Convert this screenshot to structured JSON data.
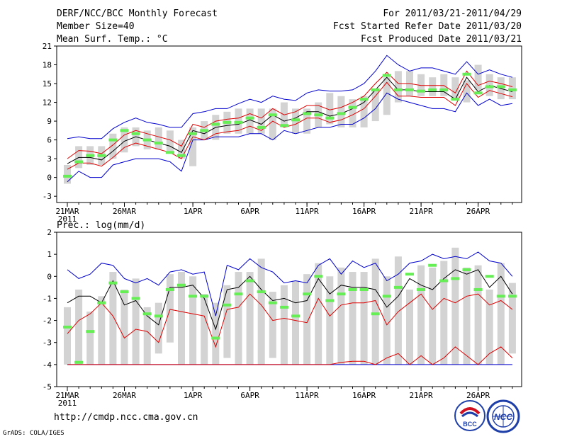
{
  "header": {
    "title": "DERF/NCC/BCC Monthly Forecast",
    "member_size": "Member Size=40",
    "variable": "Mean Surf. Temp.: °C",
    "period": "For 2011/03/21-2011/04/29",
    "started": "Fcst Started Refer Date 2011/03/20",
    "produced": "Fcst Produced Date 2011/03/21"
  },
  "footer": {
    "url": "http://cmdp.ncc.cma.gov.cn",
    "credit": "GrADS: COLA/IGES",
    "logo_left_text": "BCC",
    "logo_right_text": "NCC"
  },
  "colors": {
    "box": "#d3d3d3",
    "obs": "#66ee55",
    "mean": "#000000",
    "band": "#dd0000",
    "envelope": "#0000cc"
  },
  "chart_data": [
    {
      "type": "box",
      "title": "",
      "ylabel": "Mean Surf. Temp.: °C",
      "ylim": [
        -4,
        21
      ],
      "yticks": [
        -3,
        0,
        3,
        6,
        9,
        12,
        15,
        18,
        21
      ],
      "xticks": [
        {
          "day": 0,
          "label": "21MAR",
          "sub": "2011"
        },
        {
          "day": 5,
          "label": "26MAR"
        },
        {
          "day": 11,
          "label": "1APR"
        },
        {
          "day": 16,
          "label": "6APR"
        },
        {
          "day": 21,
          "label": "11APR"
        },
        {
          "day": 26,
          "label": "16APR"
        },
        {
          "day": 31,
          "label": "21APR"
        },
        {
          "day": 36,
          "label": "26APR"
        }
      ],
      "days": [
        0,
        1,
        2,
        3,
        4,
        5,
        6,
        7,
        8,
        9,
        10,
        11,
        12,
        13,
        14,
        15,
        16,
        17,
        18,
        19,
        20,
        21,
        22,
        23,
        24,
        25,
        26,
        27,
        28,
        29,
        30,
        31,
        32,
        33,
        34,
        35,
        36,
        37,
        38,
        39
      ],
      "box_low": [
        -1,
        1.5,
        2,
        2,
        3,
        4,
        5,
        4.5,
        4.5,
        4,
        3,
        1.8,
        6,
        6,
        7,
        7,
        7,
        7,
        6,
        8,
        7,
        7,
        8,
        8.5,
        8,
        8,
        8,
        9,
        10,
        12,
        13,
        13,
        13,
        13,
        12.5,
        12,
        14,
        13,
        12.5,
        12.5
      ],
      "box_high": [
        2,
        5,
        5,
        5,
        7,
        8,
        8,
        7.5,
        8,
        7.5,
        6,
        8,
        9,
        10,
        10.5,
        11,
        11,
        11,
        11,
        12,
        11,
        11,
        12,
        13.5,
        13,
        12.5,
        13,
        14,
        16,
        17,
        17,
        16.5,
        16,
        16.5,
        16,
        15.5,
        18,
        16.5,
        16,
        16
      ],
      "mean": [
        2.2,
        3.2,
        3.2,
        2.8,
        4.2,
        5.8,
        6.5,
        6,
        5.5,
        5,
        4,
        7.5,
        7,
        8,
        8.3,
        8.5,
        9.2,
        8.5,
        10,
        9,
        9.5,
        10.5,
        10.5,
        9.8,
        10.2,
        11,
        12,
        14,
        16,
        14,
        14,
        13.7,
        13.7,
        13.7,
        12.5,
        16,
        13.7,
        14.7,
        14.2,
        13.7
      ],
      "band_upper": [
        3,
        4.3,
        4.2,
        3.8,
        5.2,
        6.8,
        7.5,
        7,
        6.5,
        6,
        5,
        8.5,
        8,
        9,
        9.3,
        9.5,
        10.2,
        9.5,
        11,
        10,
        10.5,
        11.5,
        11.5,
        10.8,
        11.2,
        12,
        13,
        15,
        16.8,
        15,
        15,
        14.7,
        14.7,
        14.7,
        13.5,
        17,
        14.7,
        15.4,
        15,
        14.5
      ],
      "band_lower": [
        1.3,
        2.3,
        2.3,
        1.8,
        3.2,
        4.8,
        5.5,
        5,
        4.5,
        4,
        3,
        6.5,
        6,
        7,
        7.3,
        7.5,
        8.2,
        7.5,
        9,
        8,
        8.5,
        9.5,
        9.5,
        8.8,
        9.2,
        10,
        11,
        13,
        15.2,
        13,
        13,
        12.8,
        12.8,
        12.8,
        11.5,
        15,
        12.8,
        13.9,
        13.4,
        12.9
      ],
      "env_max": [
        6.2,
        6.5,
        6.2,
        6.2,
        7.8,
        8.8,
        9.5,
        8.8,
        8.5,
        8,
        8,
        10.2,
        10.5,
        11,
        11,
        11.8,
        12.5,
        12,
        13,
        12.5,
        12.3,
        13.5,
        14,
        13.8,
        13.8,
        14,
        15,
        17,
        19.5,
        18,
        17,
        17.5,
        17.5,
        17,
        16.5,
        18.5,
        16.5,
        17.2,
        16.5,
        16
      ],
      "env_min": [
        -0.7,
        1,
        0,
        0,
        2,
        2.5,
        3,
        3,
        3,
        2.5,
        1,
        6,
        6,
        6.5,
        6.5,
        6.5,
        7,
        7,
        6,
        7.5,
        7,
        7.5,
        8,
        8,
        8.5,
        8.5,
        9.5,
        11,
        13.5,
        12.5,
        12,
        11.5,
        11,
        11,
        10.5,
        13.5,
        11.5,
        12.5,
        11.5,
        11.8
      ],
      "obs": [
        0.2,
        2.5,
        3.5,
        3.5,
        6,
        7.5,
        7,
        6,
        5.5,
        4,
        3.5,
        7,
        7.5,
        8.5,
        8.8,
        8.8,
        9.5,
        8,
        10,
        8.3,
        9.2,
        10.2,
        10,
        9.5,
        10.2,
        11.2,
        12.5,
        14,
        16.3,
        14,
        14,
        13.8,
        14,
        14,
        12.5,
        16.5,
        13.5,
        14.5,
        14.5,
        14
      ]
    },
    {
      "type": "box",
      "title": "",
      "ylabel": "Prec.: log(mm/d)",
      "ylim": [
        -5,
        2
      ],
      "yticks": [
        -5,
        -4,
        -3,
        -2,
        -1,
        0,
        1,
        2
      ],
      "xticks": [
        {
          "day": 0,
          "label": "21MAR",
          "sub": "2011"
        },
        {
          "day": 5,
          "label": "26MAR"
        },
        {
          "day": 11,
          "label": "1APR"
        },
        {
          "day": 16,
          "label": "6APR"
        },
        {
          "day": 21,
          "label": "11APR"
        },
        {
          "day": 26,
          "label": "16APR"
        },
        {
          "day": 31,
          "label": "21APR"
        },
        {
          "day": 36,
          "label": "26APR"
        }
      ],
      "days": [
        0,
        1,
        2,
        3,
        4,
        5,
        6,
        7,
        8,
        9,
        10,
        11,
        12,
        13,
        14,
        15,
        16,
        17,
        18,
        19,
        20,
        21,
        22,
        23,
        24,
        25,
        26,
        27,
        28,
        29,
        30,
        31,
        32,
        33,
        34,
        35,
        36,
        37,
        38,
        39
      ],
      "box_low": [
        -4,
        -4,
        -4,
        -4,
        -4,
        -4,
        -4,
        -4,
        -3.5,
        -3,
        -4,
        -4,
        -4,
        -4,
        -3.7,
        -4,
        -4,
        -4,
        -3.7,
        -4,
        -4,
        -4,
        -4,
        -4,
        -4,
        -4,
        -4,
        -4,
        -4,
        -4,
        -4,
        -4,
        -4,
        -4,
        -4,
        -4,
        -4,
        -4,
        -4,
        -3.5
      ],
      "box_high": [
        -1.4,
        -0.6,
        -1.6,
        -0.9,
        0.2,
        -0.6,
        -0.1,
        -1.4,
        -1.2,
        0.1,
        0.2,
        0,
        -0.8,
        -1.2,
        -0.4,
        0.2,
        0.2,
        0.8,
        -0.7,
        -0.4,
        -0.2,
        0.1,
        0.6,
        0,
        0.4,
        0.2,
        0.2,
        0.8,
        0,
        0.9,
        -0.6,
        0.5,
        0.4,
        0.7,
        1.3,
        0.4,
        0.5,
        -0.6,
        0.6,
        -0.3
      ],
      "mean": [
        -1.2,
        -0.9,
        -0.9,
        -1.2,
        -0.2,
        -1.3,
        -1.1,
        -1.8,
        -2.2,
        -0.5,
        -0.5,
        -0.4,
        -1,
        -2.4,
        -0.6,
        -0.5,
        0,
        -0.6,
        -1.1,
        -1,
        -1.2,
        -1.1,
        -0.1,
        -0.8,
        -0.4,
        -0.5,
        -0.5,
        -0.6,
        -1.4,
        -0.9,
        -0.1,
        -0.4,
        -0.6,
        -0.1,
        0.3,
        0.1,
        0.3,
        -0.5,
        0,
        -0.8
      ],
      "band_upper": [
        -2.6,
        -2,
        -1.7,
        -1.2,
        -1.8,
        -2.8,
        -2.4,
        -2.5,
        -3,
        -1.5,
        -1.6,
        -1.7,
        -1.8,
        -3.2,
        -1.5,
        -1.4,
        -0.8,
        -1.3,
        -2,
        -1.9,
        -2,
        -2.1,
        -1,
        -1.8,
        -1.3,
        -1.2,
        -1.2,
        -1.1,
        -2.2,
        -1.6,
        -1.2,
        -0.8,
        -1.5,
        -1,
        -1.2,
        -0.9,
        -0.8,
        -1.3,
        -1.1,
        -1.5
      ],
      "band_lower": [
        -4,
        -4,
        -4,
        -4,
        -4,
        -4,
        -4,
        -4,
        -4,
        -4,
        -4,
        -4,
        -4,
        -4,
        -4,
        -4,
        -4,
        -4,
        -4,
        -4,
        -4,
        -4,
        -4,
        -4,
        -3.9,
        -3.85,
        -3.85,
        -4,
        -3.7,
        -3.5,
        -4,
        -3.6,
        -4,
        -3.7,
        -3.2,
        -3.6,
        -4,
        -3.5,
        -3.2,
        -3.7
      ],
      "env_max": [
        0.3,
        -0.1,
        0.1,
        0.6,
        0.5,
        -0.1,
        -0.3,
        -0.1,
        -0.4,
        0.2,
        0.3,
        0.1,
        0.2,
        -1.8,
        0.5,
        0.3,
        0.8,
        0.4,
        0.2,
        -0.3,
        -0.2,
        -0.3,
        0.5,
        0.8,
        0.1,
        0.7,
        0.4,
        0.6,
        -0.2,
        0.1,
        0.6,
        0.7,
        1,
        0.8,
        0.9,
        0.8,
        1.1,
        0.7,
        0.6,
        0
      ],
      "env_min": [
        -4,
        -4,
        -4,
        -4,
        -4,
        -4,
        -4,
        -4,
        -4,
        -4,
        -4,
        -4,
        -4,
        -4,
        -4,
        -4,
        -4,
        -4,
        -4,
        -4,
        -4,
        -4,
        -4,
        -4,
        -4,
        -4,
        -4,
        -4,
        -4,
        -4,
        -4,
        -4,
        -4,
        -4,
        -4,
        -4,
        -4,
        -4,
        -4,
        -4
      ],
      "obs": [
        -2.3,
        -3.9,
        -2.5,
        -1.2,
        -0.3,
        -0.7,
        -1,
        -1.7,
        -1.8,
        -0.6,
        -0.4,
        -0.9,
        -0.9,
        -2.8,
        -1.3,
        -0.8,
        -0.2,
        -0.7,
        -1.2,
        -1.4,
        -1.8,
        -0.8,
        0,
        -1.1,
        -0.8,
        -0.6,
        -0.6,
        -1.7,
        -0.9,
        -0.5,
        0.1,
        -0.6,
        0.5,
        -0.2,
        -0.1,
        0.3,
        -0.6,
        0,
        -0.9,
        -0.9
      ]
    }
  ]
}
